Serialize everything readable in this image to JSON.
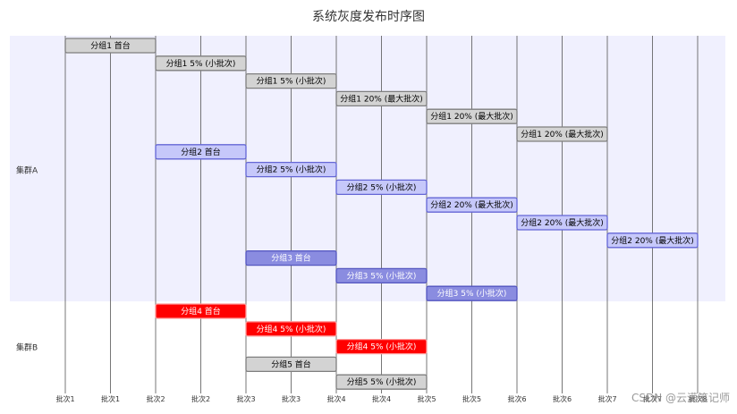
{
  "title": "系统灰度发布时序图",
  "watermark": "CSDN @云满笔记师",
  "chart_data": {
    "type": "gantt",
    "title": "系统灰度发布时序图",
    "x_ticks": [
      "批次1",
      "批次1",
      "批次2",
      "批次2",
      "批次3",
      "批次3",
      "批次4",
      "批次4",
      "批次5",
      "批次5",
      "批次6",
      "批次6",
      "批次7",
      "批次7",
      "批次8"
    ],
    "sections": [
      {
        "name": "集群A",
        "color": "#f0f0fe"
      },
      {
        "name": "集群B",
        "color": "#ffffff"
      }
    ],
    "tasks": [
      {
        "label": "分组1 首台",
        "section": "集群A",
        "start": 1,
        "end": 2,
        "style": "gray"
      },
      {
        "label": "分组1 5% (小批次)",
        "section": "集群A",
        "start": 2,
        "end": 3,
        "style": "gray"
      },
      {
        "label": "分组1 5% (小批次)",
        "section": "集群A",
        "start": 3,
        "end": 4,
        "style": "gray"
      },
      {
        "label": "分组1 20% (最大批次)",
        "section": "集群A",
        "start": 4,
        "end": 5,
        "style": "gray"
      },
      {
        "label": "分组1 20% (最大批次)",
        "section": "集群A",
        "start": 5,
        "end": 6,
        "style": "gray"
      },
      {
        "label": "分组1 20% (最大批次)",
        "section": "集群A",
        "start": 6,
        "end": 7,
        "style": "gray"
      },
      {
        "label": "分组2 首台",
        "section": "集群A",
        "start": 2,
        "end": 3,
        "style": "blue"
      },
      {
        "label": "分组2 5% (小批次)",
        "section": "集群A",
        "start": 3,
        "end": 4,
        "style": "blue"
      },
      {
        "label": "分组2 5% (小批次)",
        "section": "集群A",
        "start": 4,
        "end": 5,
        "style": "blue"
      },
      {
        "label": "分组2 20% (最大批次)",
        "section": "集群A",
        "start": 5,
        "end": 6,
        "style": "blue"
      },
      {
        "label": "分组2 20% (最大批次)",
        "section": "集群A",
        "start": 6,
        "end": 7,
        "style": "blue"
      },
      {
        "label": "分组2 20% (最大批次)",
        "section": "集群A",
        "start": 7,
        "end": 8,
        "style": "blue"
      },
      {
        "label": "分组3 首台",
        "section": "集群A",
        "start": 3,
        "end": 4,
        "style": "purple"
      },
      {
        "label": "分组3 5% (小批次)",
        "section": "集群A",
        "start": 4,
        "end": 5,
        "style": "purple"
      },
      {
        "label": "分组3 5% (小批次)",
        "section": "集群A",
        "start": 5,
        "end": 6,
        "style": "purple"
      },
      {
        "label": "分组4 首台",
        "section": "集群B",
        "start": 2,
        "end": 3,
        "style": "red"
      },
      {
        "label": "分组4 5% (小批次)",
        "section": "集群B",
        "start": 3,
        "end": 4,
        "style": "red"
      },
      {
        "label": "分组4 5% (小批次)",
        "section": "集群B",
        "start": 4,
        "end": 5,
        "style": "red"
      },
      {
        "label": "分组5 首台",
        "section": "集群B",
        "start": 3,
        "end": 4,
        "style": "gray"
      },
      {
        "label": "分组5 5% (小批次)",
        "section": "集群B",
        "start": 4,
        "end": 5,
        "style": "gray"
      }
    ],
    "styles": {
      "gray": {
        "fill": "#d3d3d3",
        "stroke": "#7f7f7f",
        "text": "#000000"
      },
      "blue": {
        "fill": "#c6c8fa",
        "stroke": "#6466d6",
        "text": "#000000"
      },
      "purple": {
        "fill": "#8a8ce0",
        "stroke": "#5456c0",
        "text": "#ffffff"
      },
      "red": {
        "fill": "#ff0000",
        "stroke": "#ff9999",
        "text": "#ffffff"
      }
    }
  }
}
